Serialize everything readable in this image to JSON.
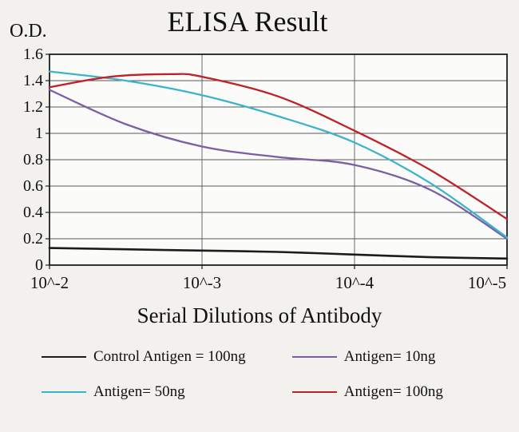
{
  "figure": {
    "title": "ELISA Result",
    "od_label": "O.D.",
    "x_axis_title": "Serial Dilutions of Antibody"
  },
  "chart_data": {
    "type": "line",
    "title": "ELISA Result",
    "ylabel": "O.D.",
    "xlabel": "Serial Dilutions of Antibody",
    "x_axis_note": "x = -log10(antibody dilution), axis runs 10^-2 to 10^-5",
    "x_tick_labels": [
      "10^-2",
      "10^-3",
      "10^-4",
      "10^-5"
    ],
    "x_tick_values": [
      2,
      3,
      4,
      5
    ],
    "ylim": [
      0,
      1.6
    ],
    "y_tick_labels": [
      "0",
      "0.2",
      "0.4",
      "0.6",
      "0.8",
      "1",
      "1.2",
      "1.4",
      "1.6"
    ],
    "y_tick_values": [
      0,
      0.2,
      0.4,
      0.6,
      0.8,
      1,
      1.2,
      1.4,
      1.6
    ],
    "grid": true,
    "legend_position": "bottom",
    "series": [
      {
        "name": "Control Antigen = 100ng",
        "color": "#1c1c1c",
        "x": [
          2,
          2.5,
          3,
          3.5,
          4,
          4.5,
          5
        ],
        "y": [
          0.13,
          0.12,
          0.11,
          0.1,
          0.08,
          0.06,
          0.05
        ]
      },
      {
        "name": "Antigen= 10ng",
        "color": "#7a5fa5",
        "x": [
          2,
          2.5,
          3,
          3.5,
          4,
          4.5,
          5
        ],
        "y": [
          1.33,
          1.07,
          0.9,
          0.82,
          0.76,
          0.57,
          0.2
        ]
      },
      {
        "name": "Antigen= 50ng",
        "color": "#3db3cb",
        "x": [
          2,
          2.5,
          3,
          3.5,
          4,
          4.5,
          5
        ],
        "y": [
          1.47,
          1.4,
          1.29,
          1.13,
          0.93,
          0.62,
          0.21
        ]
      },
      {
        "name": "Antigen= 100ng",
        "color": "#c02128",
        "x": [
          2,
          2.4,
          2.8,
          3,
          3.5,
          4,
          4.5,
          5
        ],
        "y": [
          1.35,
          1.43,
          1.45,
          1.43,
          1.28,
          1.02,
          0.72,
          0.35
        ]
      }
    ]
  }
}
